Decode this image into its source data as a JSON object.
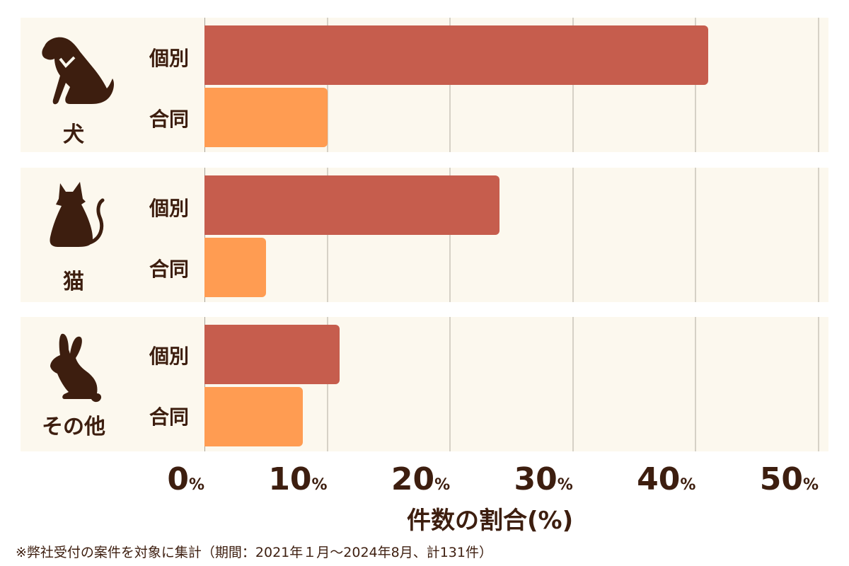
{
  "chart_data": {
    "type": "bar",
    "orientation": "horizontal",
    "title": "",
    "xlabel": "件数の割合(%)",
    "ylabel": "",
    "xlim": [
      0,
      50
    ],
    "x_ticks": [
      0,
      10,
      20,
      30,
      40,
      50
    ],
    "tick_suffix": "%",
    "grid": true,
    "categories": [
      "犬",
      "猫",
      "その他"
    ],
    "series": [
      {
        "name": "個別",
        "color": "#c65d4d",
        "values": [
          41,
          24,
          11
        ]
      },
      {
        "name": "合同",
        "color": "#ff9c52",
        "values": [
          10,
          5,
          8
        ]
      }
    ],
    "footnote": "※弊社受付の案件を対象に集計（期間：2021年１月～2024年8月、計131件）"
  },
  "groups": [
    {
      "label": "犬",
      "icon": "dog-icon",
      "series_labels": [
        "個別",
        "合同"
      ],
      "values": [
        41,
        10
      ]
    },
    {
      "label": "猫",
      "icon": "cat-icon",
      "series_labels": [
        "個別",
        "合同"
      ],
      "values": [
        24,
        5
      ]
    },
    {
      "label": "その他",
      "icon": "rabbit-icon",
      "series_labels": [
        "個別",
        "合同"
      ],
      "values": [
        11,
        8
      ]
    }
  ],
  "ticks": [
    {
      "num": "0",
      "pct": "%"
    },
    {
      "num": "10",
      "pct": "%"
    },
    {
      "num": "20",
      "pct": "%"
    },
    {
      "num": "30",
      "pct": "%"
    },
    {
      "num": "40",
      "pct": "%"
    },
    {
      "num": "50",
      "pct": "%"
    }
  ],
  "xlabel": "件数の割合(%)",
  "footnote": "※弊社受付の案件を対象に集計（期間：2021年１月～2024年8月、計131件）",
  "colors": {
    "individual": "#c65d4d",
    "joint": "#ff9c52",
    "panel_bg": "#fcf8ee",
    "text": "#3d1e0f"
  }
}
